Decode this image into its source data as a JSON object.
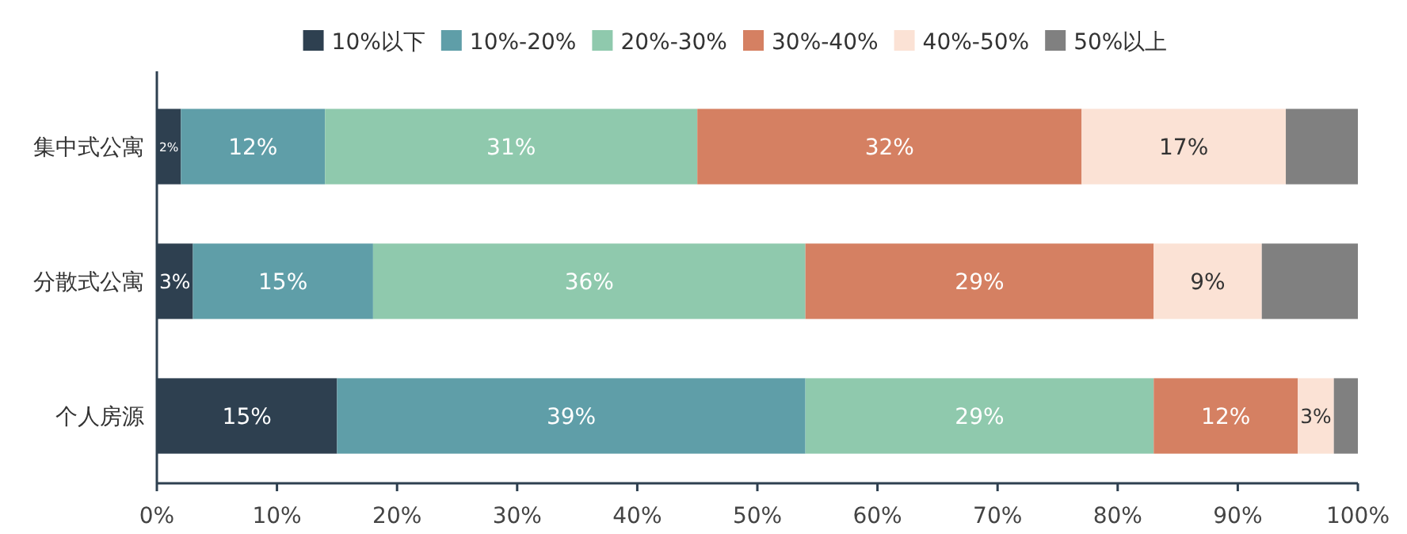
{
  "chart_data": {
    "type": "bar",
    "orientation": "horizontal",
    "stacked": true,
    "categories": [
      "集中式公寓",
      "分散式公寓",
      "个人房源"
    ],
    "series": [
      {
        "name": "10%以下",
        "color": "#2e4050",
        "values": [
          2,
          3,
          15
        ],
        "value_labels": [
          "2%",
          "3%",
          "15%"
        ]
      },
      {
        "name": "10%-20%",
        "color": "#5f9ea8",
        "values": [
          12,
          15,
          39
        ],
        "value_labels": [
          "12%",
          "15%",
          "39%"
        ]
      },
      {
        "name": "20%-30%",
        "color": "#8fc9ad",
        "values": [
          31,
          36,
          29
        ],
        "value_labels": [
          "31%",
          "36%",
          "29%"
        ]
      },
      {
        "name": "30%-40%",
        "color": "#d58062",
        "values": [
          32,
          29,
          12
        ],
        "value_labels": [
          "32%",
          "29%",
          "12%"
        ]
      },
      {
        "name": "40%-50%",
        "color": "#fbe2d5",
        "values": [
          17,
          9,
          3
        ],
        "value_labels": [
          "17%",
          "9%",
          "3%"
        ]
      },
      {
        "name": "50%以上",
        "color": "#808080",
        "values": [
          6,
          8,
          2
        ],
        "value_labels": [
          null,
          null,
          null
        ]
      }
    ],
    "xlim": [
      0,
      100
    ],
    "xticks": [
      {
        "value": 0,
        "label": "0%"
      },
      {
        "value": 10,
        "label": "10%"
      },
      {
        "value": 20,
        "label": "20%"
      },
      {
        "value": 30,
        "label": "30%"
      },
      {
        "value": 40,
        "label": "40%"
      },
      {
        "value": 50,
        "label": "50%"
      },
      {
        "value": 60,
        "label": "60%"
      },
      {
        "value": 70,
        "label": "70%"
      },
      {
        "value": 80,
        "label": "80%"
      },
      {
        "value": 90,
        "label": "90%"
      },
      {
        "value": 100,
        "label": "100%"
      }
    ],
    "legend": "top",
    "grid": false
  }
}
